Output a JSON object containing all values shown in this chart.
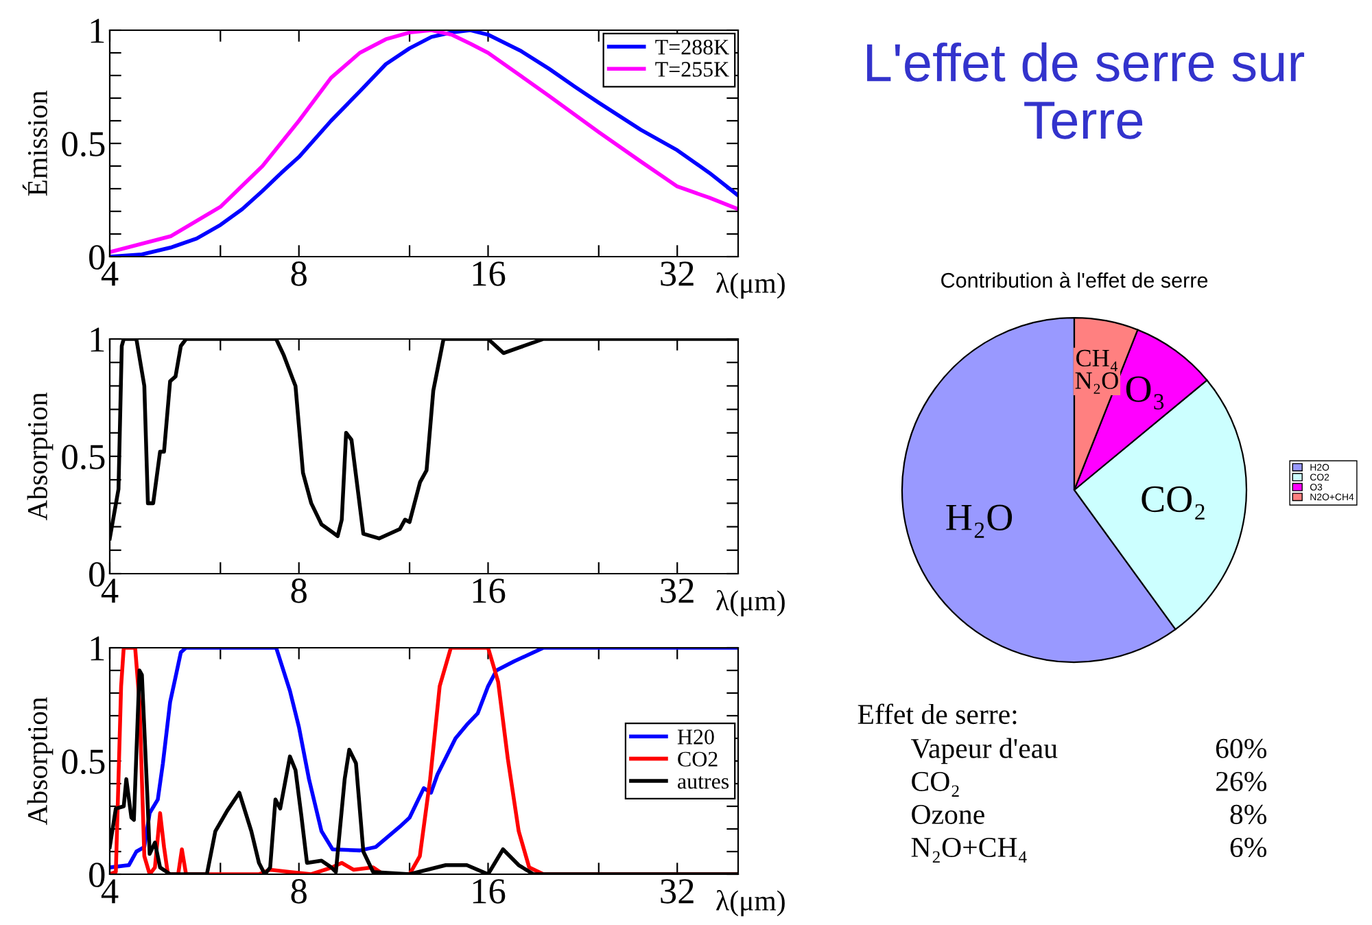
{
  "chart_data": [
    {
      "type": "line",
      "ylabel": "Émission",
      "xlabel": "λ(μm)",
      "log": "x",
      "legend": "top right",
      "xlim": [
        4,
        40
      ],
      "xticks": [
        4,
        {
          "value": 6,
          "label": null
        },
        8,
        {
          "value": 12,
          "label": null
        },
        16,
        {
          "value": 24,
          "label": null
        },
        32
      ],
      "ylim": [
        0,
        1
      ],
      "yticks": [
        0,
        {
          "value": 0.1,
          "label": null
        },
        {
          "value": 0.2,
          "label": null
        },
        {
          "value": 0.3,
          "label": null
        },
        {
          "value": 0.4,
          "label": null
        },
        0.5,
        {
          "value": 0.6,
          "label": null
        },
        {
          "value": 0.7,
          "label": null
        },
        {
          "value": 0.8,
          "label": null
        },
        {
          "value": 0.9,
          "label": null
        },
        1
      ],
      "series": [
        {
          "name": "T=288K",
          "color": "#0000ff",
          "x": [
            4,
            4.5,
            5,
            5.5,
            6,
            6.5,
            7,
            7.5,
            8,
            9,
            10,
            11,
            12,
            13,
            14,
            15,
            16,
            18,
            20,
            22,
            24,
            28,
            32,
            36,
            40
          ],
          "values": [
            0.0,
            0.01,
            0.04,
            0.08,
            0.14,
            0.21,
            0.29,
            0.37,
            0.44,
            0.6,
            0.73,
            0.85,
            0.92,
            0.97,
            0.99,
            1.0,
            0.98,
            0.91,
            0.83,
            0.75,
            0.68,
            0.56,
            0.47,
            0.37,
            0.27
          ]
        },
        {
          "name": "T=255K",
          "color": "#ff00ff",
          "x": [
            4,
            5,
            6,
            7,
            8,
            9,
            10,
            11,
            12,
            13,
            14,
            15,
            16,
            18,
            20,
            24,
            28,
            32,
            36,
            40
          ],
          "values": [
            0.02,
            0.09,
            0.22,
            0.4,
            0.6,
            0.79,
            0.9,
            0.96,
            0.99,
            1.0,
            0.98,
            0.94,
            0.9,
            0.8,
            0.71,
            0.55,
            0.42,
            0.31,
            0.26,
            0.21
          ]
        }
      ]
    },
    {
      "type": "line",
      "ylabel": "Absorption",
      "xlabel": "λ(μm)",
      "log": "x",
      "xlim": [
        4,
        40
      ],
      "xticks": [
        4,
        {
          "value": 6,
          "label": null
        },
        8,
        {
          "value": 12,
          "label": null
        },
        16,
        {
          "value": 24,
          "label": null
        },
        32
      ],
      "ylim": [
        0,
        1
      ],
      "yticks": [
        0,
        {
          "value": 0.1,
          "label": null
        },
        {
          "value": 0.2,
          "label": null
        },
        {
          "value": 0.3,
          "label": null
        },
        {
          "value": 0.4,
          "label": null
        },
        0.5,
        {
          "value": 0.6,
          "label": null
        },
        {
          "value": 0.7,
          "label": null
        },
        {
          "value": 0.8,
          "label": null
        },
        {
          "value": 0.9,
          "label": null
        },
        1
      ],
      "series": [
        {
          "color": "#000000",
          "x": [
            4.0,
            4.13,
            4.18,
            4.21,
            4.41,
            4.54,
            4.6,
            4.69,
            4.81,
            4.88,
            4.99,
            5.09,
            5.19,
            5.29,
            7.36,
            7.57,
            7.82,
            7.9,
            8.12,
            8.37,
            8.69,
            9.01,
            9.22,
            9.36,
            9.51,
            9.7,
            10.13,
            10.73,
            11.58,
            11.8,
            12.0,
            12.47,
            12.77,
            13.09,
            13.59,
            16.0,
            16.93,
            19.6,
            40
          ],
          "values": [
            0.15,
            0.36,
            0.97,
            1,
            1,
            0.8,
            0.3,
            0.3,
            0.52,
            0.52,
            0.82,
            0.84,
            0.97,
            1,
            1,
            0.93,
            0.83,
            0.8,
            0.43,
            0.3,
            0.21,
            0.18,
            0.16,
            0.23,
            0.6,
            0.57,
            0.17,
            0.15,
            0.19,
            0.23,
            0.22,
            0.39,
            0.44,
            0.78,
            1,
            1,
            0.94,
            1,
            1
          ]
        }
      ]
    },
    {
      "type": "line",
      "ylabel": "Absorption",
      "xlabel": "λ(μm)",
      "log": "x",
      "legend": "right",
      "xlim": [
        4,
        40
      ],
      "xticks": [
        4,
        {
          "value": 6,
          "label": null
        },
        8,
        {
          "value": 12,
          "label": null
        },
        16,
        {
          "value": 24,
          "label": null
        },
        32
      ],
      "ylim": [
        0,
        1
      ],
      "yticks": [
        0,
        {
          "value": 0.1,
          "label": null
        },
        {
          "value": 0.2,
          "label": null
        },
        {
          "value": 0.3,
          "label": null
        },
        {
          "value": 0.4,
          "label": null
        },
        0.5,
        {
          "value": 0.6,
          "label": null
        },
        {
          "value": 0.7,
          "label": null
        },
        {
          "value": 0.8,
          "label": null
        },
        {
          "value": 0.9,
          "label": null
        },
        1
      ],
      "series": [
        {
          "name": "H20",
          "color": "#0000ff",
          "x": [
            4.0,
            4.29,
            4.41,
            4.54,
            4.63,
            4.77,
            4.86,
            4.99,
            5.09,
            5.19,
            5.29,
            7.36,
            7.74,
            8.0,
            8.3,
            8.69,
            9.05,
            10.0,
            10.6,
            11.58,
            12.0,
            12.64,
            12.98,
            13.29,
            14.2,
            14.8,
            15.4,
            16.0,
            16.5,
            17.6,
            19.6,
            40
          ],
          "values": [
            0.03,
            0.04,
            0.1,
            0.12,
            0.27,
            0.33,
            0.49,
            0.76,
            0.87,
            0.98,
            1,
            1,
            0.81,
            0.65,
            0.42,
            0.19,
            0.11,
            0.105,
            0.12,
            0.21,
            0.25,
            0.38,
            0.36,
            0.44,
            0.6,
            0.66,
            0.71,
            0.83,
            0.9,
            0.94,
            1,
            1
          ]
        },
        {
          "name": "CO2",
          "color": "#ff0000",
          "x": [
            4.0,
            4.09,
            4.17,
            4.21,
            4.39,
            4.46,
            4.54,
            4.63,
            4.72,
            4.81,
            4.88,
            4.95,
            5.14,
            5.21,
            5.29,
            5.71,
            6.91,
            7.2,
            7.74,
            8.37,
            9.03,
            9.36,
            9.77,
            10.5,
            10.9,
            12.0,
            12.46,
            12.94,
            13.4,
            13.96,
            16.0,
            16.6,
            17.2,
            17.9,
            18.6,
            19.6,
            40
          ],
          "values": [
            0,
            0.01,
            0.83,
            1,
            1,
            0.76,
            0.08,
            0,
            0.03,
            0.27,
            0.12,
            0,
            0,
            0.11,
            0,
            0,
            0,
            0.02,
            0.01,
            0,
            0.03,
            0.05,
            0.02,
            0.03,
            0,
            0,
            0.08,
            0.42,
            0.83,
            1,
            1,
            0.85,
            0.51,
            0.19,
            0.03,
            0,
            0
          ]
        },
        {
          "name": "autres",
          "color": "#000000",
          "x": [
            4.0,
            4.09,
            4.21,
            4.25,
            4.33,
            4.37,
            4.46,
            4.5,
            4.59,
            4.63,
            4.72,
            4.81,
            4.99,
            5.71,
            5.89,
            6.15,
            6.43,
            6.72,
            6.91,
            7.06,
            7.2,
            7.34,
            7.47,
            7.74,
            7.9,
            8.07,
            8.24,
            8.69,
            9.01,
            9.16,
            9.46,
            9.62,
            9.86,
            10.13,
            10.5,
            12.0,
            13.7,
            14.8,
            16.0,
            16.9,
            17.9,
            18.9,
            40
          ],
          "values": [
            0.12,
            0.29,
            0.3,
            0.42,
            0.25,
            0.24,
            0.9,
            0.88,
            0.35,
            0.09,
            0.14,
            0.03,
            0,
            0,
            0.19,
            0.28,
            0.36,
            0.19,
            0.05,
            0,
            0.03,
            0.33,
            0.29,
            0.52,
            0.46,
            0.26,
            0.05,
            0.06,
            0.03,
            0.01,
            0.42,
            0.55,
            0.49,
            0.1,
            0.01,
            0,
            0.04,
            0.04,
            0,
            0.11,
            0.04,
            0,
            0
          ]
        }
      ]
    },
    {
      "type": "other",
      "title": "L'effet de serre sur Terre"
    },
    {
      "type": "pie",
      "title": "Contribution à l'effet de serre",
      "legend": "right",
      "categories": [
        "H2O",
        "CO2",
        "O3",
        "N2O+CH4"
      ],
      "values": [
        60,
        26,
        8,
        6
      ],
      "colors": [
        "#9999ff",
        "#ccffff",
        "#ff00ff",
        "#ff8080"
      ],
      "annotations": [
        "H₂O",
        "CO₂",
        "O₃",
        "CH₄\nN₂O"
      ]
    },
    {
      "type": "other",
      "title": "Effet de serre:",
      "categories": [
        "Vapeur d'eau",
        "CO₂",
        "Ozone",
        "N₂O+CH₄"
      ],
      "values": [
        60,
        26,
        8,
        6
      ],
      "value_labels": [
        "60%",
        "26%",
        "8%",
        "6%"
      ]
    }
  ]
}
